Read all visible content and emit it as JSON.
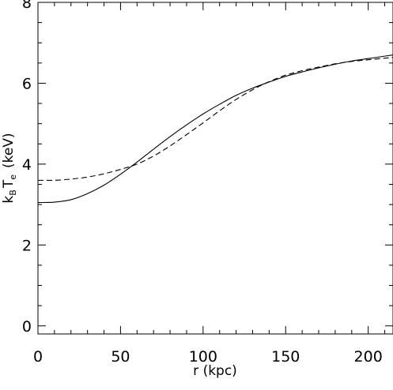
{
  "chart_data": {
    "type": "line",
    "title": "",
    "xlabel": "r (kpc)",
    "ylabel": {
      "k": "k",
      "sub_b": "B",
      "t": "T",
      "sub_e": "e",
      "unit": "(keV)"
    },
    "xlim": [
      0,
      215
    ],
    "ylim": [
      -0.2,
      8
    ],
    "x_ticks": [
      0,
      50,
      100,
      150,
      200
    ],
    "y_ticks": [
      0,
      2,
      4,
      6,
      8
    ],
    "x_tick_labels": [
      "0",
      "50",
      "100",
      "150",
      "200"
    ],
    "y_tick_labels": [
      "0",
      "2",
      "4",
      "6",
      "8"
    ],
    "grid": false,
    "series": [
      {
        "line_style": "solid",
        "color": "#000000",
        "x": [
          0,
          10,
          20,
          30,
          40,
          50,
          60,
          70,
          80,
          90,
          100,
          110,
          120,
          130,
          140,
          150,
          160,
          170,
          180,
          190,
          200,
          210,
          215
        ],
        "y": [
          3.05,
          3.06,
          3.12,
          3.27,
          3.48,
          3.75,
          4.05,
          4.37,
          4.68,
          4.97,
          5.24,
          5.48,
          5.7,
          5.88,
          6.03,
          6.17,
          6.28,
          6.38,
          6.47,
          6.55,
          6.61,
          6.67,
          6.7
        ]
      },
      {
        "line_style": "dashed",
        "color": "#000000",
        "x": [
          0,
          10,
          20,
          30,
          40,
          50,
          60,
          70,
          80,
          90,
          100,
          110,
          120,
          130,
          140,
          150,
          160,
          170,
          180,
          190,
          200,
          210,
          215
        ],
        "y": [
          3.6,
          3.6,
          3.63,
          3.68,
          3.76,
          3.87,
          4.0,
          4.2,
          4.45,
          4.73,
          5.02,
          5.32,
          5.6,
          5.84,
          6.04,
          6.2,
          6.31,
          6.4,
          6.48,
          6.54,
          6.58,
          6.62,
          6.64
        ]
      }
    ]
  }
}
